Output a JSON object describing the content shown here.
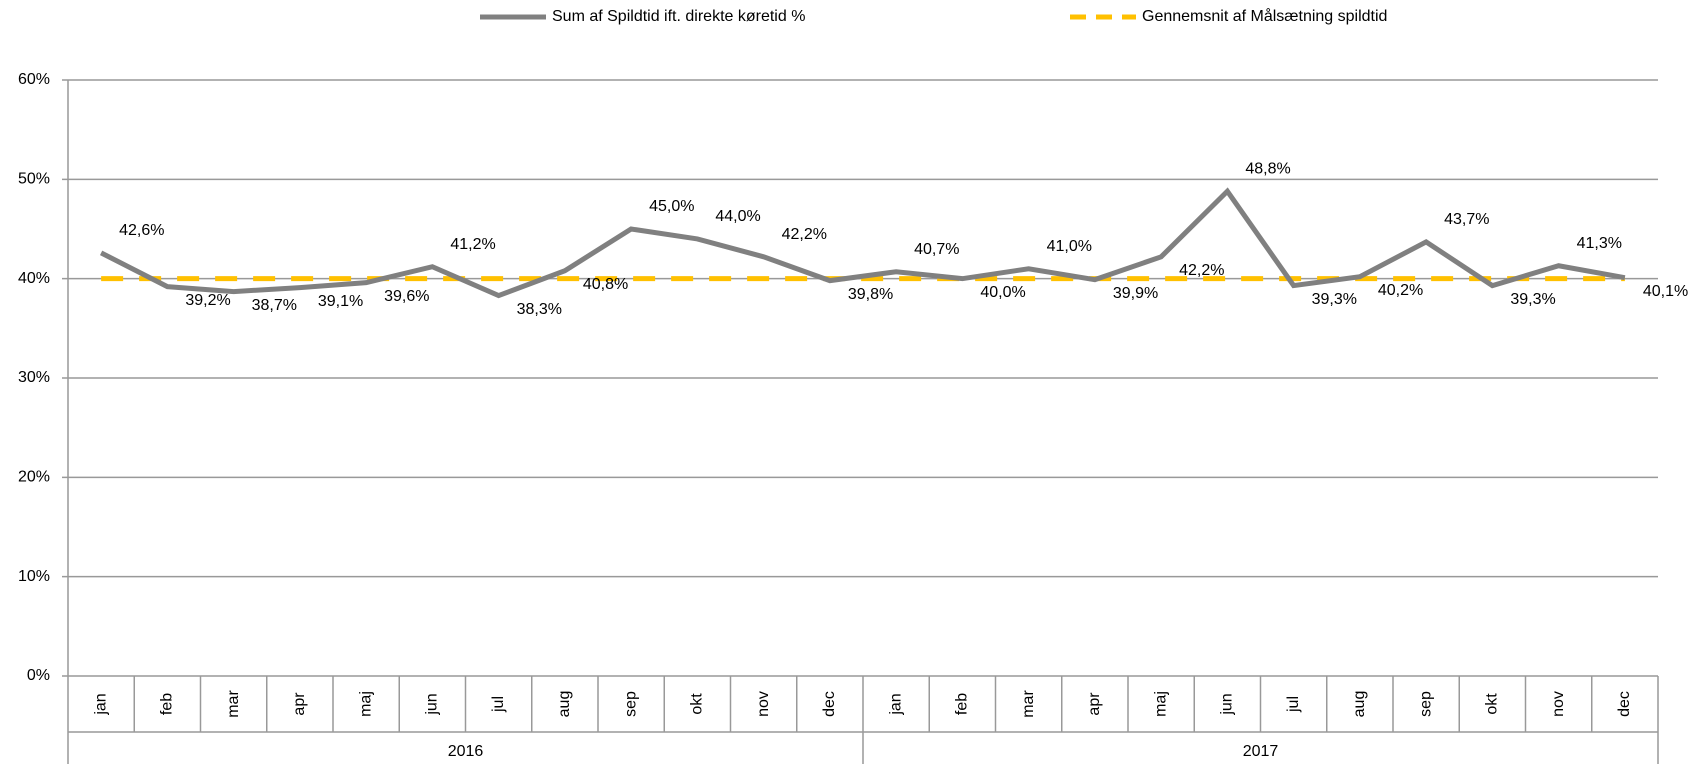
{
  "chart_data": {
    "type": "line",
    "categories": [
      "jan",
      "feb",
      "mar",
      "apr",
      "maj",
      "jun",
      "jul",
      "aug",
      "sep",
      "okt",
      "nov",
      "dec",
      "jan",
      "feb",
      "mar",
      "apr",
      "maj",
      "jun",
      "jul",
      "aug",
      "sep",
      "okt",
      "nov",
      "dec"
    ],
    "category_groups": [
      "2016",
      "2017"
    ],
    "series": [
      {
        "name": "Sum af Spildtid ift. direkte køretid %",
        "color": "#808080",
        "values": [
          42.6,
          39.2,
          38.7,
          39.1,
          39.6,
          41.2,
          38.3,
          40.8,
          45.0,
          44.0,
          42.2,
          39.8,
          40.7,
          40.0,
          41.0,
          39.9,
          42.2,
          48.8,
          39.3,
          40.2,
          43.7,
          39.3,
          41.3,
          40.1
        ],
        "value_labels": [
          "42,6%",
          "39,2%",
          "38,7%",
          "39,1%",
          "39,6%",
          "41,2%",
          "38,3%",
          "40,8%",
          "45,0%",
          "44,0%",
          "42,2%",
          "39,8%",
          "40,7%",
          "40,0%",
          "41,0%",
          "39,9%",
          "42,2%",
          "48,8%",
          "39,3%",
          "40,2%",
          "43,7%",
          "39,3%",
          "41,3%",
          "40,1%"
        ]
      },
      {
        "name": "Gennemsnit af Målsætning spildtid",
        "color": "#FFC000",
        "dashed": true,
        "values": [
          40,
          40,
          40,
          40,
          40,
          40,
          40,
          40,
          40,
          40,
          40,
          40,
          40,
          40,
          40,
          40,
          40,
          40,
          40,
          40,
          40,
          40,
          40,
          40
        ]
      }
    ],
    "ylim": [
      0,
      60
    ],
    "yticks": [
      {
        "value": 0,
        "label": "0%"
      },
      {
        "value": 10,
        "label": "10%"
      },
      {
        "value": 20,
        "label": "20%"
      },
      {
        "value": 30,
        "label": "30%"
      },
      {
        "value": 40,
        "label": "40%"
      },
      {
        "value": 50,
        "label": "50%"
      },
      {
        "value": 60,
        "label": "60%"
      }
    ],
    "grid": true,
    "legend": "top"
  }
}
